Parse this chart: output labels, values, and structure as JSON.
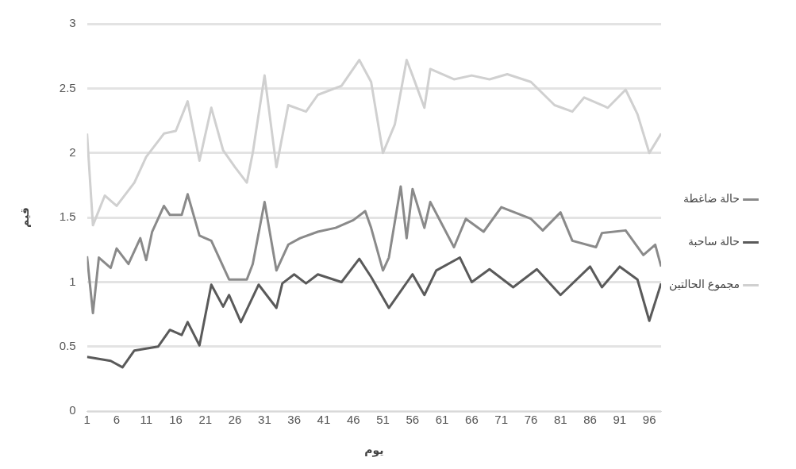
{
  "chart_data": {
    "type": "line",
    "xlabel": "يوم",
    "ylabel": "قيم",
    "xlim": [
      1,
      98
    ],
    "xticks": [
      1,
      6,
      11,
      16,
      21,
      26,
      31,
      36,
      41,
      46,
      51,
      56,
      61,
      66,
      71,
      76,
      81,
      86,
      91,
      96
    ],
    "ylim": [
      0,
      3
    ],
    "yticks": [
      0,
      0.5,
      1,
      1.5,
      2,
      2.5,
      3
    ],
    "grid": "y",
    "legend": "right",
    "marker": "none",
    "line_style": "solid",
    "series": [
      {
        "name": "حالة ضاغطة",
        "color": "#8a8a8a",
        "x": [
          1,
          2,
          3,
          5,
          6,
          8,
          10,
          11,
          12,
          14,
          15,
          17,
          18,
          20,
          22,
          25,
          28,
          29,
          31,
          33,
          35,
          37,
          40,
          43,
          46,
          48,
          49,
          51,
          52,
          54,
          55,
          56,
          58,
          59,
          63,
          65,
          68,
          71,
          76,
          78,
          81,
          83,
          87,
          88,
          92,
          95,
          97,
          98
        ],
        "values": [
          1.2,
          0.76,
          1.19,
          1.11,
          1.26,
          1.14,
          1.34,
          1.17,
          1.39,
          1.59,
          1.52,
          1.52,
          1.68,
          1.36,
          1.32,
          1.02,
          1.02,
          1.14,
          1.62,
          1.09,
          1.29,
          1.34,
          1.39,
          1.42,
          1.48,
          1.55,
          1.42,
          1.09,
          1.19,
          1.74,
          1.34,
          1.72,
          1.42,
          1.62,
          1.27,
          1.49,
          1.39,
          1.58,
          1.49,
          1.4,
          1.54,
          1.32,
          1.27,
          1.38,
          1.4,
          1.21,
          1.29,
          1.12
        ]
      },
      {
        "name": "حالة ساحبة",
        "color": "#5a5a5a",
        "x": [
          1,
          5,
          7,
          9,
          13,
          15,
          17,
          18,
          20,
          22,
          24,
          25,
          27,
          30,
          33,
          34,
          36,
          38,
          40,
          44,
          47,
          49,
          52,
          56,
          58,
          60,
          64,
          66,
          69,
          73,
          77,
          81,
          86,
          88,
          91,
          94,
          96,
          98
        ],
        "values": [
          0.42,
          0.39,
          0.34,
          0.47,
          0.5,
          0.63,
          0.59,
          0.69,
          0.51,
          0.98,
          0.81,
          0.9,
          0.69,
          0.98,
          0.8,
          0.99,
          1.06,
          0.99,
          1.06,
          1.0,
          1.18,
          1.04,
          0.8,
          1.06,
          0.9,
          1.09,
          1.19,
          1.0,
          1.1,
          0.96,
          1.1,
          0.9,
          1.12,
          0.96,
          1.12,
          1.02,
          0.7,
          0.99
        ]
      },
      {
        "name": "مجموع الحالتين",
        "color": "#d0d0d0",
        "x": [
          1,
          2,
          4,
          6,
          9,
          11,
          14,
          16,
          18,
          20,
          22,
          24,
          26,
          28,
          29,
          31,
          33,
          35,
          38,
          40,
          44,
          47,
          49,
          51,
          53,
          55,
          56,
          58,
          59,
          63,
          66,
          69,
          72,
          76,
          80,
          83,
          85,
          89,
          92,
          94,
          96,
          98
        ],
        "values": [
          2.15,
          1.44,
          1.67,
          1.59,
          1.77,
          1.97,
          2.15,
          2.17,
          2.4,
          1.94,
          2.35,
          2.02,
          1.89,
          1.77,
          2.0,
          2.6,
          1.89,
          2.37,
          2.32,
          2.45,
          2.52,
          2.72,
          2.55,
          2.0,
          2.22,
          2.72,
          2.6,
          2.35,
          2.65,
          2.57,
          2.6,
          2.57,
          2.61,
          2.55,
          2.37,
          2.32,
          2.43,
          2.35,
          2.49,
          2.3,
          2.0,
          2.15
        ]
      }
    ]
  }
}
